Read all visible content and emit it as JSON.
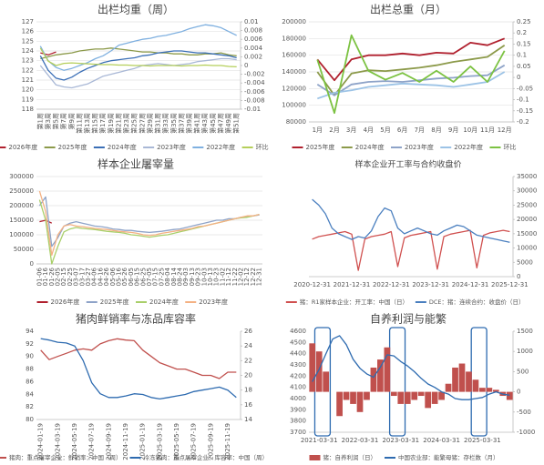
{
  "chart_data": [
    {
      "type": "line",
      "title": "出栏均重（周）",
      "categories": [
        "第1周",
        "第3周",
        "第5周",
        "第7周",
        "第9周",
        "第11周",
        "第13周",
        "第15周",
        "第17周",
        "第19周",
        "第21周",
        "第23周",
        "第25周",
        "第27周",
        "第29周",
        "第31周",
        "第33周",
        "第35周",
        "第37周",
        "第39周",
        "第41周",
        "第43周",
        "第45周",
        "第47周",
        "第49周",
        "第51周"
      ],
      "ylim": [
        118,
        127
      ],
      "yticks": [
        118,
        119,
        120,
        121,
        122,
        123,
        124,
        125,
        126,
        127
      ],
      "y2lim": [
        -0.01,
        0.01
      ],
      "y2ticks": [
        -0.01,
        -0.008,
        -0.006,
        -0.004,
        -0.002,
        0,
        0.002,
        0.004,
        0.006,
        0.008,
        0.01
      ],
      "grid": true,
      "series": [
        {
          "name": "2026年度",
          "color": "#b0202e",
          "values": [
            123.8,
            123.6,
            123.9,
            null,
            null,
            null,
            null,
            null,
            null,
            null,
            null,
            null,
            null,
            null,
            null,
            null,
            null,
            null,
            null,
            null,
            null,
            null,
            null,
            null,
            null,
            null
          ]
        },
        {
          "name": "2025年度",
          "color": "#8c9a4a",
          "values": [
            123.2,
            123.4,
            123.6,
            123.7,
            123.8,
            124.0,
            124.1,
            124.2,
            124.2,
            124.3,
            124.2,
            124.1,
            124.0,
            123.9,
            123.9,
            123.8,
            123.8,
            123.7,
            123.7,
            123.6,
            123.6,
            123.7,
            123.7,
            123.8,
            123.6,
            123.5
          ]
        },
        {
          "name": "2024年度",
          "color": "#3b6fb6",
          "values": [
            123.5,
            122.0,
            121.2,
            121.0,
            121.3,
            121.8,
            122.2,
            122.5,
            122.8,
            123.0,
            123.1,
            123.2,
            123.3,
            123.5,
            123.6,
            123.8,
            123.9,
            124.0,
            124.0,
            123.9,
            123.8,
            123.8,
            123.7,
            123.6,
            123.5,
            123.3
          ]
        },
        {
          "name": "2023年度",
          "color": "#a9b8d6",
          "values": [
            122.5,
            121.5,
            120.5,
            120.3,
            120.2,
            120.4,
            120.6,
            121.0,
            121.4,
            121.6,
            121.8,
            122.0,
            122.2,
            122.5,
            122.6,
            122.7,
            122.6,
            122.5,
            122.6,
            122.7,
            122.9,
            123.0,
            123.1,
            123.2,
            123.2,
            123.1
          ]
        },
        {
          "name": "2022年度",
          "color": "#7fb0e0",
          "values": [
            124.5,
            123.0,
            122.3,
            122.0,
            122.2,
            122.5,
            122.8,
            123.2,
            123.5,
            124.0,
            124.6,
            124.8,
            125.0,
            125.2,
            125.3,
            125.5,
            125.6,
            125.8,
            126.0,
            126.3,
            126.5,
            126.7,
            126.6,
            126.4,
            126.0,
            125.6
          ]
        },
        {
          "name": "环比",
          "color": "#b5cf5a",
          "axis": "y2",
          "values": [
            0.004,
            0.001,
            0,
            0.0005,
            0.0006,
            0.0005,
            0.0004,
            0.0003,
            0.0002,
            0.0002,
            0.0001,
            0.0001,
            0,
            0,
            -0.0001,
            0,
            0,
            0,
            -0.0001,
            0,
            0,
            0.0001,
            0,
            0,
            -0.0002,
            -0.0003
          ]
        }
      ]
    },
    {
      "type": "line",
      "title": "出栏总重（月）",
      "categories": [
        "1月",
        "2月",
        "3月",
        "4月",
        "5月",
        "6月",
        "7月",
        "8月",
        "9月",
        "10月",
        "11月",
        "12月"
      ],
      "ylim": [
        80000,
        200000
      ],
      "yticks": [
        80000,
        100000,
        120000,
        140000,
        160000,
        180000,
        200000
      ],
      "y2lim": [
        -0.2,
        0.25
      ],
      "y2ticks": [
        -0.2,
        -0.15,
        -0.1,
        -0.05,
        0,
        0.05,
        0.1,
        0.15,
        0.2,
        0.25
      ],
      "grid": true,
      "series": [
        {
          "name": "2025年度",
          "color": "#b0202e",
          "values": [
            155000,
            130000,
            155000,
            160000,
            160000,
            162000,
            160000,
            163000,
            162000,
            175000,
            172000,
            180000
          ]
        },
        {
          "name": "2024年度",
          "color": "#8c9a4a",
          "values": [
            140000,
            112000,
            138000,
            142000,
            141000,
            143000,
            145000,
            148000,
            152000,
            155000,
            158000,
            172000
          ]
        },
        {
          "name": "2023年度",
          "color": "#8ea3c8",
          "values": [
            125000,
            112000,
            125000,
            128000,
            129000,
            128000,
            130000,
            132000,
            133000,
            135000,
            136000,
            148000
          ]
        },
        {
          "name": "2022年度",
          "color": "#9cc3e6",
          "values": [
            108000,
            115000,
            118000,
            122000,
            124000,
            126000,
            125000,
            124000,
            122000,
            125000,
            128000,
            140000
          ]
        },
        {
          "name": "环比",
          "color": "#7cc242",
          "axis": "y2",
          "values": [
            0.08,
            -0.16,
            0.19,
            0.03,
            -0.01,
            0.02,
            -0.02,
            0.03,
            -0.02,
            0.05,
            -0.02,
            0.12
          ]
        }
      ]
    },
    {
      "type": "line",
      "title": "样本企业屠宰量",
      "categories": [
        "01-06",
        "01-16",
        "01-26",
        "02-05",
        "02-15",
        "02-25",
        "03-07",
        "03-17",
        "03-27",
        "04-06",
        "04-16",
        "04-26",
        "05-06",
        "05-16",
        "05-26",
        "06-05",
        "06-15",
        "06-25",
        "07-05",
        "07-15",
        "07-25",
        "08-04",
        "08-14",
        "08-24",
        "09-03",
        "09-13",
        "09-23",
        "10-03",
        "10-13",
        "10-23",
        "11-02",
        "11-12",
        "11-22",
        "12-02",
        "12-12",
        "12-22",
        "12-31"
      ],
      "ylim": [
        0,
        300000
      ],
      "yticks": [
        0,
        50000,
        100000,
        150000,
        200000,
        250000,
        300000
      ],
      "grid": true,
      "series": [
        {
          "name": "2026年度",
          "color": "#b0202e",
          "values": [
            145000,
            150000,
            140000,
            null,
            null,
            null,
            null,
            null,
            null,
            null,
            null,
            null,
            null,
            null,
            null,
            null,
            null,
            null,
            null,
            null,
            null,
            null,
            null,
            null,
            null,
            null,
            null,
            null,
            null,
            null,
            null,
            null,
            null,
            null,
            null,
            null,
            null
          ]
        },
        {
          "name": "2025年度",
          "color": "#8ea3c8",
          "values": [
            200000,
            230000,
            60000,
            90000,
            130000,
            140000,
            145000,
            140000,
            135000,
            130000,
            128000,
            125000,
            120000,
            118000,
            115000,
            115000,
            112000,
            110000,
            108000,
            110000,
            112000,
            115000,
            118000,
            120000,
            125000,
            130000,
            135000,
            140000,
            145000,
            150000,
            150000,
            155000,
            155000,
            160000,
            162000,
            165000,
            168000
          ]
        },
        {
          "name": "2024年度",
          "color": "#a9cf6a",
          "values": [
            220000,
            150000,
            0,
            60000,
            110000,
            120000,
            125000,
            122000,
            120000,
            118000,
            115000,
            112000,
            110000,
            108000,
            105000,
            100000,
            98000,
            95000,
            92000,
            95000,
            98000,
            100000,
            105000,
            110000,
            115000,
            120000,
            125000,
            130000,
            135000,
            140000,
            145000,
            150000,
            155000,
            158000,
            160000,
            165000,
            170000
          ]
        },
        {
          "name": "2023年度",
          "color": "#f4b183",
          "values": [
            250000,
            180000,
            30000,
            100000,
            130000,
            135000,
            130000,
            128000,
            125000,
            122000,
            120000,
            118000,
            115000,
            112000,
            110000,
            108000,
            105000,
            100000,
            98000,
            100000,
            105000,
            108000,
            112000,
            115000,
            118000,
            122000,
            128000,
            130000,
            135000,
            140000,
            145000,
            150000,
            155000,
            160000,
            165000,
            165000,
            170000
          ]
        }
      ]
    },
    {
      "type": "line",
      "title": "样本企业开工率与合约收盘价",
      "categories": [
        "2020-12-31",
        null,
        null,
        null,
        null,
        null,
        "2021-12-31",
        null,
        null,
        null,
        null,
        null,
        "2022-12-31",
        null,
        null,
        null,
        null,
        null,
        "2023-12-31",
        null,
        null,
        null,
        null,
        null,
        "2024-12-31",
        null,
        null,
        null,
        null,
        null,
        "2025-12-31"
      ],
      "ylim": [
        0,
        80
      ],
      "y2lim": [
        0,
        35000
      ],
      "y2ticks": [
        0,
        5000,
        10000,
        15000,
        20000,
        25000,
        30000,
        35000
      ],
      "grid": false,
      "series": [
        {
          "name": "猪：R1家样本企业：开工率：中国（日）",
          "color": "#d0504f",
          "values": [
            30,
            32,
            33,
            34,
            35,
            36,
            34,
            5,
            30,
            32,
            33,
            34,
            36,
            8,
            31,
            33,
            34,
            35,
            36,
            6,
            32,
            34,
            35,
            36,
            37,
            7,
            33,
            35,
            36,
            37,
            36
          ]
        },
        {
          "name": "DCE：猪：连续合约：收盘价（日）",
          "color": "#4a7fbf",
          "axis": "y2",
          "values": [
            27000,
            25000,
            22000,
            17000,
            15000,
            14000,
            13000,
            14000,
            13500,
            16000,
            21000,
            24000,
            23000,
            17000,
            15000,
            16000,
            17000,
            16000,
            15000,
            14500,
            16000,
            17000,
            18000,
            17500,
            16000,
            14500,
            14000,
            13500,
            13000,
            12500,
            12000
          ]
        }
      ]
    },
    {
      "type": "line",
      "title": "猪肉鲜销率与冻品库容率",
      "categories": [
        "2024-01-19",
        null,
        "2024-03-19",
        null,
        "2024-05-19",
        null,
        "2024-07-19",
        null,
        "2024-09-19",
        null,
        "2024-11-19",
        null,
        "2025-01-19",
        null,
        "2025-03-19",
        null,
        "2025-05-19",
        null,
        "2025-07-19",
        null,
        "2025-09-19",
        null,
        "2025-11-19",
        null
      ],
      "ylim": [
        80,
        94
      ],
      "yticks": [
        80,
        82,
        84,
        86,
        88,
        90,
        92,
        94
      ],
      "y2lim": [
        14,
        26
      ],
      "y2ticks": [
        14,
        16,
        18,
        20,
        22,
        24,
        26
      ],
      "grid": false,
      "series": [
        {
          "name": "猪肉：重点屠宰企业：鲜销率：中国（周）",
          "color": "#c0504d",
          "values": [
            91,
            89.5,
            90,
            90.5,
            91,
            91.2,
            91,
            92,
            92.5,
            92.8,
            92.6,
            92.5,
            91,
            90,
            89,
            88.5,
            88,
            88,
            87.5,
            87,
            87,
            86.5,
            87.5,
            87.5
          ]
        },
        {
          "name": "冷冻猪肉：重点屠宰企业：库容率：中国（周）",
          "color": "#2e6bb0",
          "axis": "y2",
          "values": [
            25,
            24.8,
            24.5,
            24.4,
            24,
            22,
            19,
            17.5,
            17,
            17,
            17.2,
            17.5,
            17.4,
            17,
            16.8,
            17,
            17.2,
            17.4,
            17.8,
            18,
            18.2,
            18.4,
            18,
            17
          ]
        }
      ]
    },
    {
      "type": "combo",
      "title": "自养利润与能繁",
      "categories": [
        null,
        "2021-03-31",
        null,
        null,
        null,
        null,
        null,
        "2022-03-31",
        null,
        null,
        null,
        null,
        null,
        "2023-03-31",
        null,
        null,
        null,
        null,
        null,
        "2024-03-31",
        null,
        null,
        null,
        null,
        null,
        "2025-03-31",
        null,
        null,
        null,
        null
      ],
      "ylim": [
        3700,
        4600
      ],
      "yticks": [
        3700,
        3800,
        3900,
        4000,
        4100,
        4200,
        4300,
        4400,
        4500,
        4600
      ],
      "y2lim": [
        -1000,
        1500
      ],
      "y2ticks": [
        -1000,
        -500,
        0,
        500,
        1000,
        1500
      ],
      "grid": false,
      "series": [
        {
          "name": "猪：自养利润（日）",
          "color": "#c0504d",
          "type": "bar",
          "axis": "y2",
          "values": [
            1200,
            1000,
            500,
            0,
            -600,
            -200,
            -300,
            -500,
            -200,
            600,
            800,
            1100,
            -100,
            -300,
            -300,
            -200,
            -100,
            -400,
            -300,
            -200,
            200,
            600,
            700,
            500,
            300,
            100,
            100,
            50,
            -100,
            -200
          ]
        },
        {
          "name": "中国农业部：能繁母猪：存栏数（月）",
          "color": "#2e6bb0",
          "type": "line",
          "values": [
            4150,
            4260,
            4400,
            4530,
            4560,
            4480,
            4350,
            4270,
            4220,
            4190,
            4280,
            4390,
            4380,
            4330,
            4290,
            4240,
            4180,
            4130,
            4100,
            4060,
            4040,
            4000,
            3990,
            3990,
            4000,
            4010,
            4040,
            4060,
            4040,
            4030
          ]
        }
      ]
    }
  ]
}
